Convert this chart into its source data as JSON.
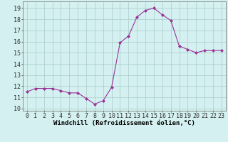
{
  "x": [
    0,
    1,
    2,
    3,
    4,
    5,
    6,
    7,
    8,
    9,
    10,
    11,
    12,
    13,
    14,
    15,
    16,
    17,
    18,
    19,
    20,
    21,
    22,
    23
  ],
  "y": [
    11.5,
    11.8,
    11.8,
    11.8,
    11.6,
    11.4,
    11.4,
    10.9,
    10.4,
    10.7,
    11.9,
    15.9,
    16.5,
    18.2,
    18.8,
    19.0,
    18.4,
    17.9,
    15.6,
    15.3,
    15.0,
    15.2,
    15.2,
    15.2
  ],
  "line_color": "#993399",
  "marker": "D",
  "marker_size": 2.0,
  "bg_color": "#d4f0f0",
  "grid_color": "#aacccc",
  "xlabel": "Windchill (Refroidissement éolien,°C)",
  "xlabel_fontsize": 6.5,
  "tick_fontsize": 6.0,
  "ylabel_ticks": [
    10,
    11,
    12,
    13,
    14,
    15,
    16,
    17,
    18,
    19
  ],
  "ylim": [
    9.8,
    19.6
  ],
  "xlim": [
    -0.5,
    23.5
  ]
}
